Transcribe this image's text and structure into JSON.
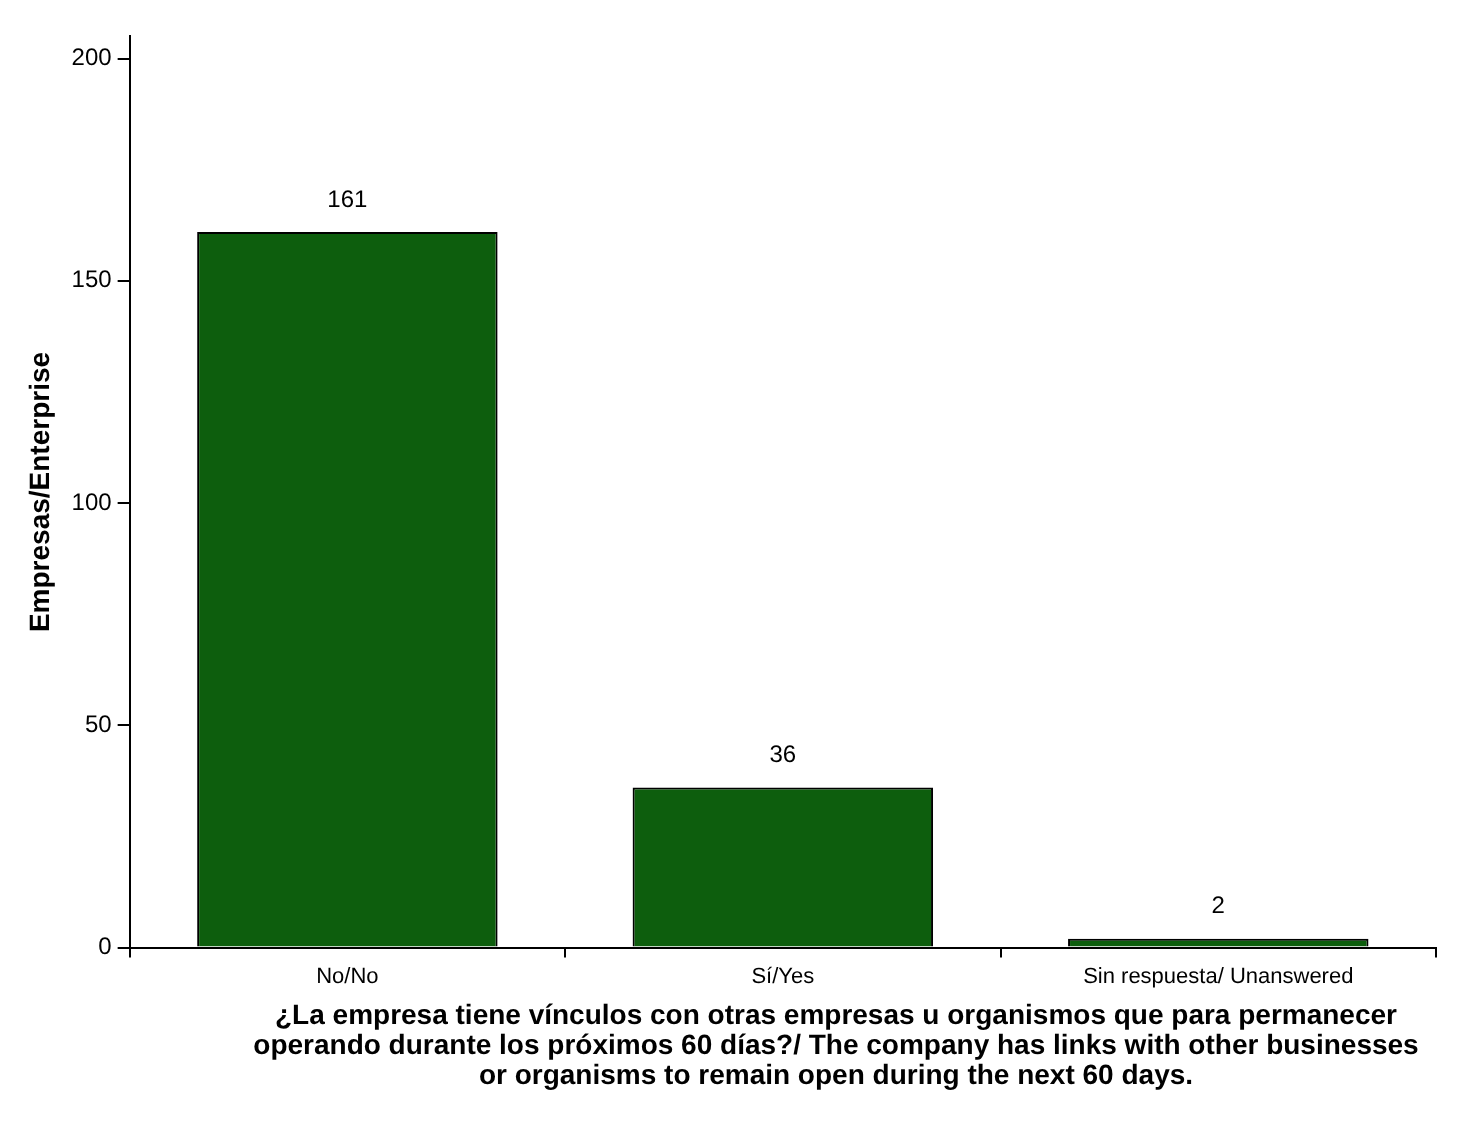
{
  "chart_data": {
    "type": "bar",
    "xlabel": "¿La empresa tiene vínculos con otras empresas u organismos que para permanecer operando durante los próximos 60 días?/ The company has links with other businesses or organisms to remain open during the next 60 days.",
    "ylabel": "Empresas/Enterprise",
    "categories": [
      "No/No",
      "Sí/Yes",
      "Sin respuesta/ Unanswered"
    ],
    "values": [
      161,
      36,
      2
    ],
    "color": "#0d5e0d",
    "ylim": [
      0,
      205
    ],
    "yticks": [
      0,
      50,
      100,
      150,
      200
    ],
    "data_labels": true,
    "grid": false,
    "legend": false
  }
}
